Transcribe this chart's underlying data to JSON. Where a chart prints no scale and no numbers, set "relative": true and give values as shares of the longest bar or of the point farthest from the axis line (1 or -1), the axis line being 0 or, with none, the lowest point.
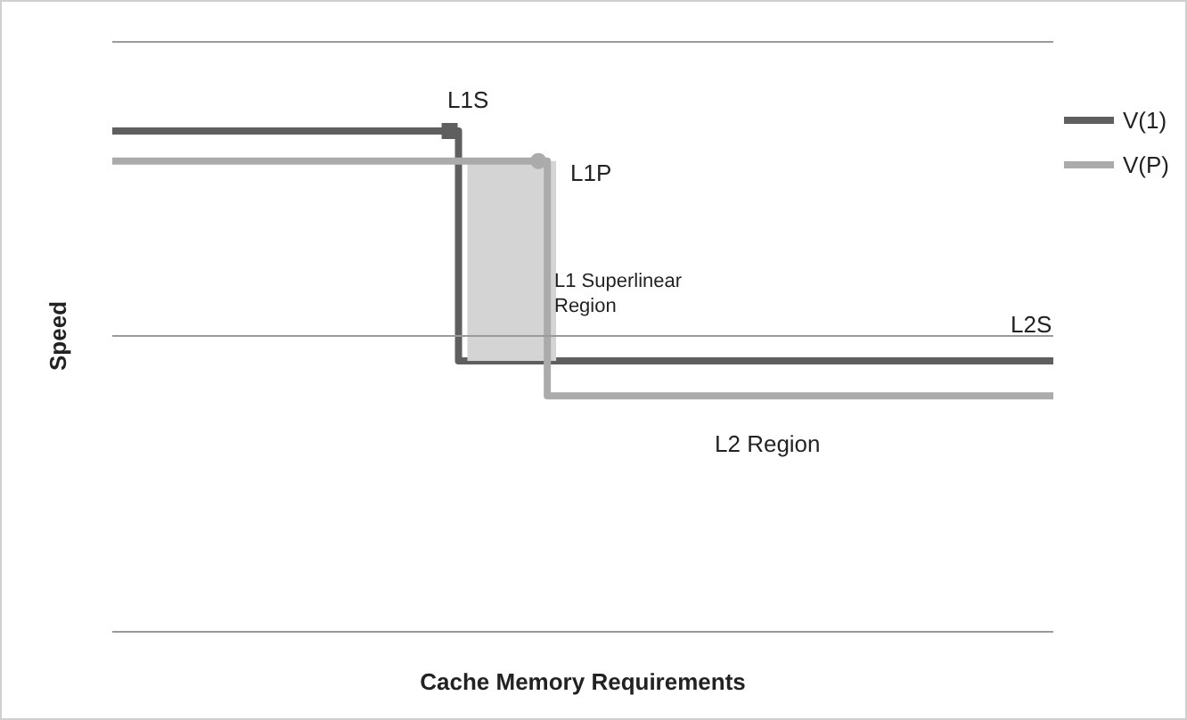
{
  "chart_data": {
    "type": "step",
    "relative": true,
    "xlabel": "Cache Memory Requirements",
    "ylabel": "Speed",
    "legend": "top right",
    "ref_lines": [
      {
        "axis": "y",
        "value": 1.18,
        "color": "#9a9a9a"
      },
      {
        "axis": "y",
        "value": 0.59,
        "color": "#9a9a9a"
      },
      {
        "axis": "y",
        "value": 0,
        "color": "#9a9a9a"
      }
    ],
    "categories": [
      null,
      null,
      null,
      null,
      null,
      null,
      null,
      null,
      null,
      null,
      null,
      null,
      null,
      null,
      null,
      null,
      null,
      null,
      null,
      null,
      null,
      null,
      null,
      null,
      null,
      null,
      null,
      null,
      null,
      null,
      null,
      null,
      null,
      null,
      null,
      null,
      null,
      null,
      null,
      null,
      null,
      null,
      null,
      null,
      null,
      null,
      null,
      null,
      null,
      null,
      null,
      null,
      null,
      null
    ],
    "series": [
      {
        "name": "V(1)",
        "color": "#5f5f5f",
        "values": [
          1,
          1,
          1,
          1,
          1,
          1,
          1,
          1,
          1,
          1,
          1,
          1,
          1,
          1,
          1,
          1,
          1,
          1,
          1,
          1,
          0.54,
          0.54,
          0.54,
          0.54,
          0.54,
          0.54,
          0.54,
          0.54,
          0.54,
          0.54,
          0.54,
          0.54,
          0.54,
          0.54,
          0.54,
          0.54,
          0.54,
          0.54,
          0.54,
          0.54,
          0.54,
          0.54,
          0.54,
          0.54,
          0.54,
          0.54,
          0.54,
          0.54,
          0.54,
          0.54,
          0.54,
          0.54,
          0.54,
          0.54
        ]
      },
      {
        "name": "V(P)",
        "color": "#ababab",
        "values": [
          0.94,
          0.94,
          0.94,
          0.94,
          0.94,
          0.94,
          0.94,
          0.94,
          0.94,
          0.94,
          0.94,
          0.94,
          0.94,
          0.94,
          0.94,
          0.94,
          0.94,
          0.94,
          0.94,
          0.94,
          0.94,
          0.94,
          0.94,
          0.94,
          0.94,
          0.47,
          0.47,
          0.47,
          0.47,
          0.47,
          0.47,
          0.47,
          0.47,
          0.47,
          0.47,
          0.47,
          0.47,
          0.47,
          0.47,
          0.47,
          0.47,
          0.47,
          0.47,
          0.47,
          0.47,
          0.47,
          0.47,
          0.47,
          0.47,
          0.47,
          0.47,
          0.47,
          0.47,
          0.47
        ]
      }
    ],
    "annotations": [
      "L1S",
      "L1P",
      "L1 Superlinear\nRegion",
      "L2S",
      "L2 Region"
    ]
  }
}
